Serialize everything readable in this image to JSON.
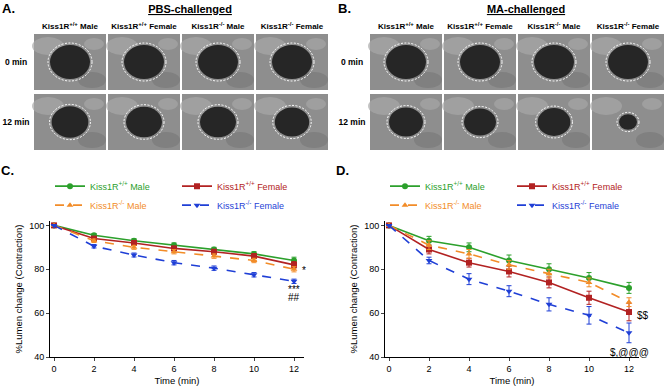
{
  "panels": [
    {
      "label": "A.",
      "title": "PBS-challenged",
      "columns": [
        "Kiss1R+/+ Male",
        "Kiss1R+/+ Female",
        "Kiss1R-/- Male",
        "Kiss1R-/- Female"
      ],
      "rows": [
        "0 min",
        "12 min"
      ]
    },
    {
      "label": "B.",
      "title": "MA-challenged",
      "columns": [
        "Kiss1R+/+ Male",
        "Kiss1R+/+ Female",
        "Kiss1R-/- Male",
        "Kiss1R-/- Female"
      ],
      "rows": [
        "0 min",
        "12 min"
      ]
    }
  ],
  "chart_data": [
    {
      "type": "line",
      "label": "C.",
      "xlabel": "Time (min)",
      "ylabel": "%Lumen change (Contraction)",
      "x": [
        0,
        2,
        4,
        6,
        8,
        10,
        12
      ],
      "xlim": [
        -0.2,
        12.5
      ],
      "xticks": [
        0,
        2,
        4,
        6,
        8,
        10,
        12
      ],
      "ylim": [
        40,
        102
      ],
      "yticks": [
        40,
        60,
        80,
        100
      ],
      "grid": false,
      "legend": "top",
      "series": [
        {
          "name": "Kiss1R+/+ Male",
          "color": "#2ca02c",
          "marker": "circle",
          "line_style": "solid",
          "values": [
            100,
            95.5,
            93,
            91,
            89,
            87,
            84
          ],
          "errors": [
            0,
            0.8,
            0.9,
            1,
            1,
            1,
            1.5
          ]
        },
        {
          "name": "Kiss1R+/+ Female",
          "color": "#b22222",
          "marker": "square",
          "line_style": "solid",
          "values": [
            100,
            94,
            92,
            89.5,
            88,
            86,
            82
          ],
          "errors": [
            0,
            0.8,
            0.9,
            1,
            1,
            1,
            1.5
          ]
        },
        {
          "name": "Kiss1R-/- Male",
          "color": "#f28c28",
          "marker": "triangle-up",
          "line_style": "dash",
          "values": [
            100,
            93,
            90,
            88,
            86,
            84,
            80
          ],
          "errors": [
            0,
            0.8,
            0.9,
            1,
            1,
            1,
            1.2
          ]
        },
        {
          "name": "Kiss1R-/- Female",
          "color": "#1f3fd6",
          "marker": "triangle-down",
          "line_style": "dash",
          "values": [
            100,
            90.5,
            86.5,
            83,
            80.5,
            77.5,
            74.5
          ],
          "errors": [
            0,
            0.8,
            0.9,
            1,
            1,
            1,
            1
          ]
        }
      ],
      "annotations": [
        {
          "text": "*",
          "x": 12.3,
          "y": 79.5
        },
        {
          "text": "***",
          "x": 12,
          "y": 71
        },
        {
          "text": "##",
          "x": 12,
          "y": 67
        }
      ]
    },
    {
      "type": "line",
      "label": "D.",
      "xlabel": "Time (min)",
      "ylabel": "%Lumen change (Contraction)",
      "x": [
        0,
        2,
        4,
        6,
        8,
        10,
        12
      ],
      "xlim": [
        -0.2,
        12.5
      ],
      "xticks": [
        0,
        2,
        4,
        6,
        8,
        10,
        12
      ],
      "ylim": [
        40,
        102
      ],
      "yticks": [
        40,
        60,
        80,
        100
      ],
      "grid": false,
      "legend": "top",
      "series": [
        {
          "name": "Kiss1R+/+ Male",
          "color": "#2ca02c",
          "marker": "circle",
          "line_style": "solid",
          "values": [
            100,
            93,
            90,
            84,
            80,
            76,
            71.5
          ],
          "errors": [
            0,
            2,
            2,
            2.5,
            2.5,
            2.5,
            2.5
          ]
        },
        {
          "name": "Kiss1R+/+ Female",
          "color": "#b22222",
          "marker": "square",
          "line_style": "solid",
          "values": [
            100,
            89,
            83,
            79,
            74,
            67,
            60.5
          ],
          "errors": [
            0,
            2,
            2,
            2.5,
            2.5,
            3,
            4
          ]
        },
        {
          "name": "Kiss1R-/- Male",
          "color": "#f28c28",
          "marker": "triangle-up",
          "line_style": "dash",
          "values": [
            100,
            91,
            87,
            82,
            78,
            74,
            65
          ],
          "errors": [
            0,
            2,
            2,
            2,
            2,
            2,
            2
          ]
        },
        {
          "name": "Kiss1R-/- Female",
          "color": "#1f3fd6",
          "marker": "triangle-down",
          "line_style": "dash",
          "values": [
            100,
            84,
            75.5,
            70,
            64,
            59,
            51
          ],
          "errors": [
            0,
            1.5,
            2.5,
            2.5,
            3,
            4,
            4.5
          ]
        }
      ],
      "annotations": [
        {
          "text": "$$",
          "x": 12.3,
          "y": 59
        },
        {
          "text": "$,@@@",
          "x": 12,
          "y": 42
        }
      ]
    }
  ]
}
